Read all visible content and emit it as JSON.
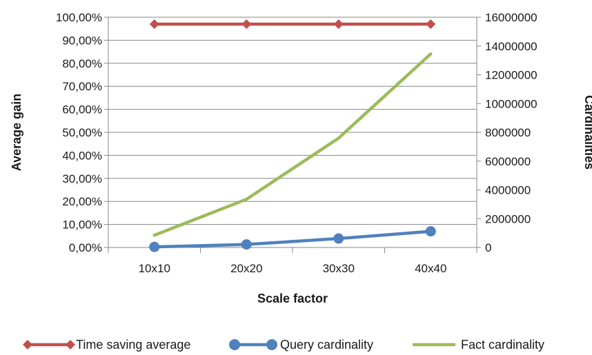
{
  "chart_data": {
    "type": "line",
    "categories": [
      "10x10",
      "20x20",
      "30x30",
      "40x40"
    ],
    "xlabel": "Scale factor",
    "ylabel": "Average gain",
    "y2label": "Cardinalities",
    "ylim": [
      0,
      100
    ],
    "y_ticks": [
      "0,00%",
      "10,00%",
      "20,00%",
      "30,00%",
      "40,00%",
      "50,00%",
      "60,00%",
      "70,00%",
      "80,00%",
      "90,00%",
      "100,00%"
    ],
    "y2lim": [
      0,
      16000000
    ],
    "y2_ticks": [
      "0",
      "2000000",
      "4000000",
      "6000000",
      "8000000",
      "10000000",
      "12000000",
      "14000000",
      "16000000"
    ],
    "grid": true,
    "legend_position": "bottom",
    "series": [
      {
        "name": "Time saving average",
        "axis": "left",
        "values": [
          97,
          97,
          97,
          97
        ],
        "color": "#c0504d",
        "marker": "diamond"
      },
      {
        "name": "Query cardinality",
        "axis": "right",
        "values": [
          40000,
          210000,
          620000,
          1120000
        ],
        "color": "#4f81bd",
        "marker": "circle"
      },
      {
        "name": "Fact cardinality",
        "axis": "right",
        "values": [
          850000,
          3350000,
          7600000,
          13450000
        ],
        "color": "#9bbb59",
        "marker": "none"
      }
    ]
  }
}
